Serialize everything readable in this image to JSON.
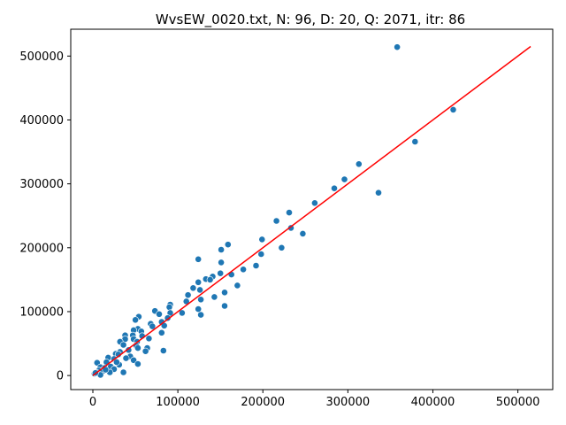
{
  "chart_data": {
    "type": "scatter",
    "title": "WvsEW_0020.txt, N: 96, D: 20, Q: 2071, itr: 86",
    "xlabel": "",
    "ylabel": "",
    "xlim": [
      -26000,
      541000
    ],
    "ylim": [
      -22000,
      542000
    ],
    "x_ticks": [
      0,
      100000,
      200000,
      300000,
      400000,
      500000
    ],
    "y_ticks": [
      0,
      100000,
      200000,
      300000,
      400000,
      500000
    ],
    "grid": false,
    "point_color": "#1f77b4",
    "line_color": "#ff0000",
    "fit_line": {
      "x": [
        0,
        515000
      ],
      "y": [
        0,
        515000
      ]
    },
    "points": [
      [
        358000,
        514000
      ],
      [
        424000,
        416000
      ],
      [
        379000,
        366000
      ],
      [
        313000,
        331000
      ],
      [
        296000,
        307000
      ],
      [
        336000,
        286000
      ],
      [
        261000,
        270000
      ],
      [
        231000,
        255000
      ],
      [
        216000,
        242000
      ],
      [
        233000,
        231000
      ],
      [
        247000,
        222000
      ],
      [
        199000,
        213000
      ],
      [
        159000,
        205000
      ],
      [
        151000,
        197000
      ],
      [
        198000,
        190000
      ],
      [
        124000,
        182000
      ],
      [
        151000,
        177000
      ],
      [
        192000,
        172000
      ],
      [
        177000,
        166000
      ],
      [
        150000,
        160000
      ],
      [
        141000,
        155000
      ],
      [
        133000,
        151000
      ],
      [
        124000,
        146000
      ],
      [
        170000,
        141000
      ],
      [
        118000,
        137000
      ],
      [
        126000,
        134000
      ],
      [
        155000,
        130000
      ],
      [
        112000,
        126000
      ],
      [
        143000,
        123000
      ],
      [
        127000,
        119000
      ],
      [
        110000,
        116000
      ],
      [
        91000,
        111000
      ],
      [
        90000,
        107000
      ],
      [
        155000,
        109000
      ],
      [
        124000,
        104000
      ],
      [
        73000,
        101000
      ],
      [
        91000,
        98000
      ],
      [
        127000,
        95000
      ],
      [
        54000,
        92000
      ],
      [
        88000,
        90000
      ],
      [
        50000,
        87000
      ],
      [
        81000,
        84000
      ],
      [
        68000,
        81000
      ],
      [
        84000,
        78000
      ],
      [
        70000,
        77000
      ],
      [
        53000,
        73000
      ],
      [
        48000,
        71000
      ],
      [
        57000,
        69000
      ],
      [
        81000,
        67000
      ],
      [
        38000,
        63000
      ],
      [
        47000,
        63000
      ],
      [
        48000,
        57000
      ],
      [
        38000,
        57000
      ],
      [
        32000,
        53000
      ],
      [
        52000,
        53000
      ],
      [
        36000,
        48000
      ],
      [
        51000,
        47000
      ],
      [
        53000,
        43000
      ],
      [
        64000,
        43000
      ],
      [
        62000,
        38000
      ],
      [
        83000,
        39000
      ],
      [
        32000,
        37000
      ],
      [
        27000,
        34000
      ],
      [
        30000,
        33000
      ],
      [
        44000,
        30000
      ],
      [
        18000,
        28000
      ],
      [
        25000,
        26000
      ],
      [
        39000,
        27000
      ],
      [
        48000,
        24000
      ],
      [
        5000,
        20000
      ],
      [
        16000,
        21000
      ],
      [
        31000,
        17000
      ],
      [
        53000,
        18000
      ],
      [
        9000,
        13000
      ],
      [
        21000,
        14000
      ],
      [
        14000,
        12000
      ],
      [
        25000,
        10000
      ],
      [
        7000,
        8000
      ],
      [
        12000,
        7000
      ],
      [
        4000,
        5000
      ],
      [
        20000,
        5000
      ],
      [
        36000,
        5000
      ],
      [
        2000,
        3000
      ],
      [
        9000,
        1000
      ],
      [
        3000,
        4000
      ],
      [
        15000,
        9000
      ],
      [
        28000,
        21000
      ],
      [
        42000,
        40000
      ],
      [
        58000,
        62000
      ],
      [
        66000,
        58000
      ],
      [
        78000,
        96000
      ],
      [
        105000,
        98000
      ],
      [
        138000,
        150000
      ],
      [
        163000,
        158000
      ],
      [
        222000,
        200000
      ],
      [
        284000,
        293000
      ]
    ]
  }
}
